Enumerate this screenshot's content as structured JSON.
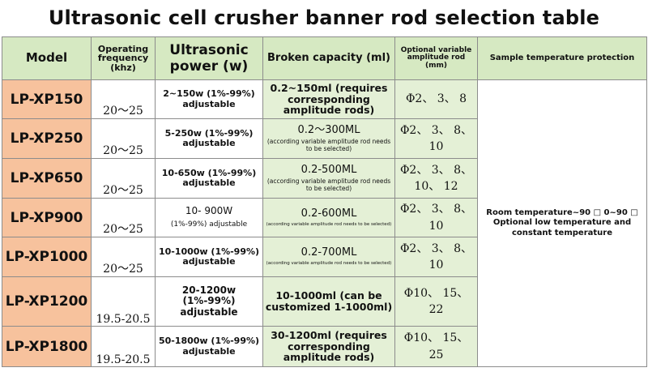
{
  "title": "Ultrasonic cell crusher banner rod selection table",
  "headers": {
    "model": "Model",
    "frequency": "Operating frequency (khz)",
    "power": "Ultrasonic power (w)",
    "capacity": "Broken capacity (ml)",
    "rod": "Optional variable amplitude rod (mm)",
    "protection": "Sample temperature protection"
  },
  "protection_text": "Room temperature~90 □ 0~90 □ Optional low temperature and constant temperature",
  "rows": [
    {
      "model": "LP-XP150",
      "frequency": "20～25",
      "power": "2~150w (1%-99%) adjustable",
      "capacity": "0.2~150ml (requires corresponding amplitude rods)",
      "capacity_note": "",
      "rod": "Φ2、 3、 8"
    },
    {
      "model": "LP-XP250",
      "frequency": "20～25",
      "power": "5-250w (1%-99%) adjustable",
      "capacity": "0.2～300ML",
      "capacity_note": "(according variable amplitude rod needs to be selected)",
      "rod": "Φ2、 3、 8、 10"
    },
    {
      "model": "LP-XP650",
      "frequency": "20～25",
      "power": "10-650w (1%-99%) adjustable",
      "capacity": "0.2-500ML",
      "capacity_note": "(according variable amplitude rod needs to be selected)",
      "rod": "Φ2、 3、 8、 10、 12"
    },
    {
      "model": "LP-XP900",
      "frequency": "20～25",
      "power": "10- 900W",
      "power_note": "(1%-99%) adjustable",
      "capacity": "0.2-600ML",
      "capacity_note": "(according variable amplitude rod needs to be selected)",
      "rod": "Φ2、 3、 8、 10"
    },
    {
      "model": "LP-XP1000",
      "frequency": "20～25",
      "power": "10-1000w (1%-99%) adjustable",
      "capacity": "0.2-700ML",
      "capacity_note": "(according variable amplitude rod needs to be selected)",
      "rod": "Φ2、 3、 8、 10"
    },
    {
      "model": "LP-XP1200",
      "frequency": "19.5-20.5",
      "power": "20-1200w (1%-99%) adjustable",
      "capacity": "10-1000ml (can be customized 1-1000ml)",
      "capacity_note": "",
      "rod": "Φ10、 15、 22"
    },
    {
      "model": "LP-XP1800",
      "frequency": "19.5-20.5",
      "power": "50-1800w (1%-99%) adjustable",
      "capacity": "30-1200ml (requires corresponding amplitude rods)",
      "capacity_note": "",
      "rod": "Φ10、 15、 25"
    }
  ]
}
